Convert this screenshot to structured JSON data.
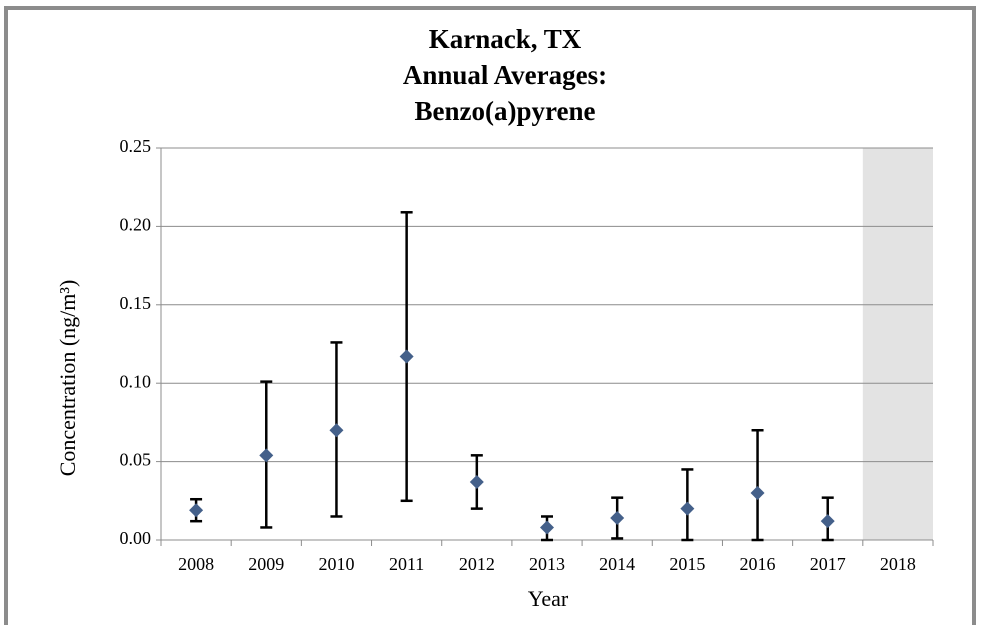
{
  "chart_data": {
    "type": "scatter-errorbar",
    "title": [
      "Karnack, TX",
      "Annual Averages:",
      "Benzo(a)pyrene"
    ],
    "x_label": "Year",
    "y_label": "Concentration (ng/m³)",
    "categories": [
      "2008",
      "2009",
      "2010",
      "2011",
      "2012",
      "2013",
      "2014",
      "2015",
      "2016",
      "2017",
      "2018"
    ],
    "series": [
      {
        "color": "#44608a",
        "values": [
          0.019,
          0.054,
          0.07,
          0.117,
          0.037,
          0.008,
          0.014,
          0.02,
          0.03,
          0.012,
          null
        ],
        "lower": [
          0.012,
          0.008,
          0.015,
          0.025,
          0.02,
          0.0,
          0.001,
          0.0,
          0.0,
          0.0,
          null
        ],
        "upper": [
          0.026,
          0.101,
          0.126,
          0.209,
          0.054,
          0.015,
          0.027,
          0.045,
          0.07,
          0.027,
          null
        ]
      }
    ],
    "highlight": {
      "category": "2018",
      "color": "#e3e3e3"
    },
    "ylim": [
      0,
      0.25
    ],
    "yticks": [
      {
        "value": 0,
        "label": "0.00"
      },
      0.05,
      {
        "value": 0.1,
        "label": "0.10"
      },
      0.15,
      {
        "value": 0.2,
        "label": "0.20"
      },
      0.25
    ],
    "grid": true
  }
}
